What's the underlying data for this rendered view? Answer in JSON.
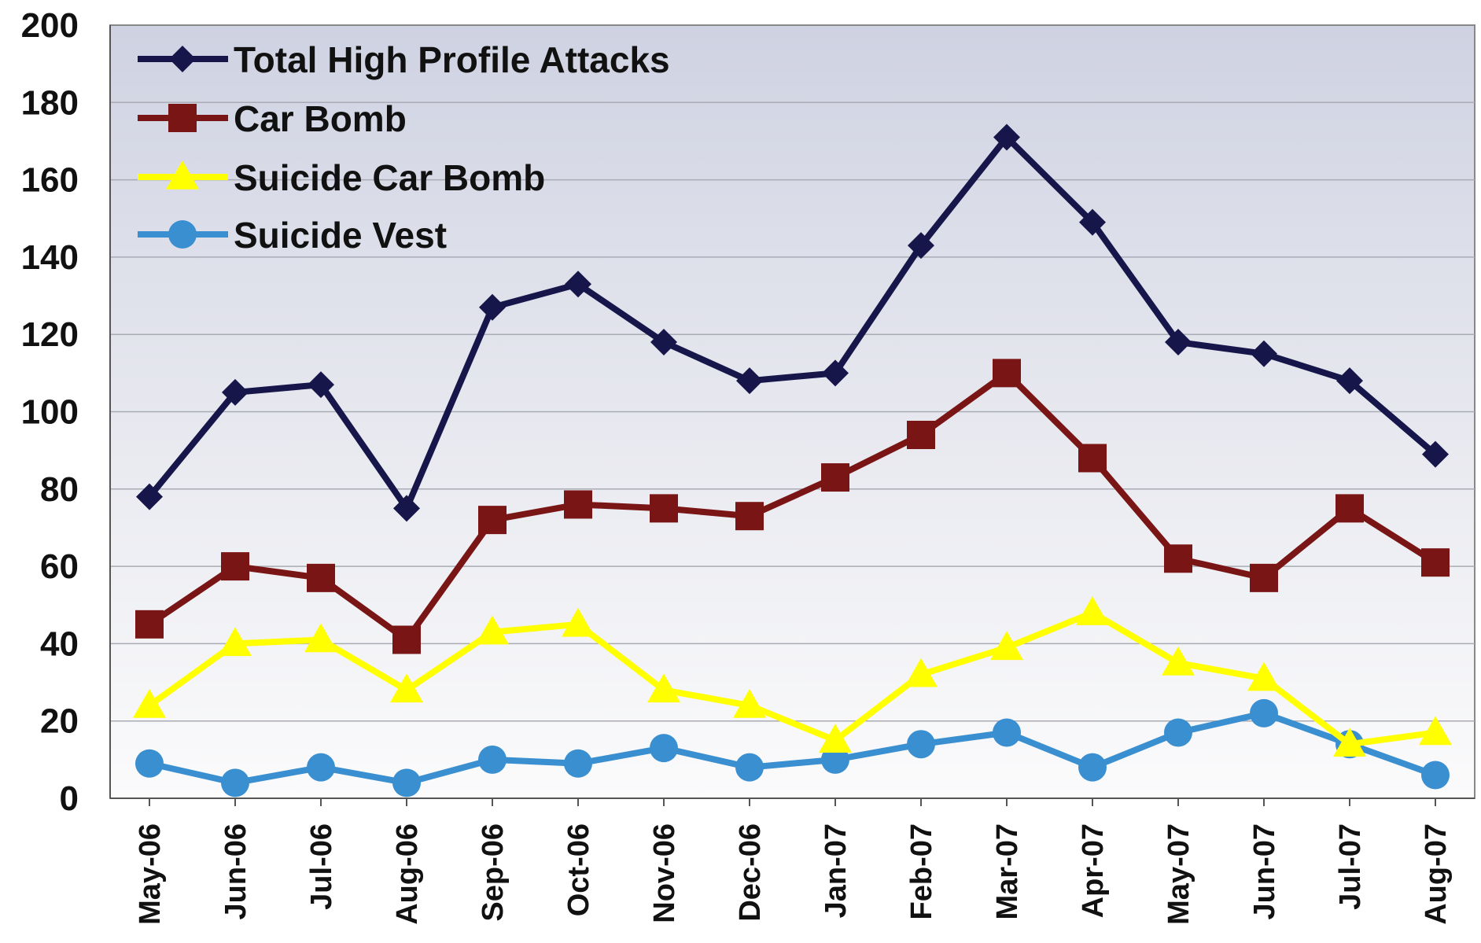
{
  "chart_data": {
    "type": "line",
    "title": "",
    "xlabel": "",
    "ylabel": "",
    "ylim": [
      0,
      200
    ],
    "yticks": [
      0,
      20,
      40,
      60,
      80,
      100,
      120,
      140,
      160,
      180,
      200
    ],
    "grid": true,
    "legend_position": "top-left",
    "categories": [
      "May-06",
      "Jun-06",
      "Jul-06",
      "Aug-06",
      "Sep-06",
      "Oct-06",
      "Nov-06",
      "Dec-06",
      "Jan-07",
      "Feb-07",
      "Mar-07",
      "Apr-07",
      "May-07",
      "Jun-07",
      "Jul-07",
      "Aug-07"
    ],
    "series": [
      {
        "name": "Total High Profile Attacks",
        "color": "#16164a",
        "marker": "diamond",
        "values": [
          78,
          105,
          107,
          75,
          127,
          133,
          118,
          108,
          110,
          143,
          171,
          149,
          118,
          115,
          108,
          89
        ]
      },
      {
        "name": "Car Bomb",
        "color": "#7a1515",
        "marker": "square",
        "values": [
          45,
          60,
          57,
          41,
          72,
          76,
          75,
          73,
          83,
          94,
          110,
          88,
          62,
          57,
          75,
          61
        ]
      },
      {
        "name": "Suicide Car Bomb",
        "color": "#ffff00",
        "marker": "triangle",
        "values": [
          24,
          40,
          41,
          28,
          43,
          45,
          28,
          24,
          15,
          32,
          39,
          48,
          35,
          31,
          14,
          17
        ]
      },
      {
        "name": "Suicide Vest",
        "color": "#3a8fd0",
        "marker": "circle",
        "values": [
          9,
          4,
          8,
          4,
          10,
          9,
          13,
          8,
          10,
          14,
          17,
          8,
          17,
          22,
          14,
          6
        ]
      }
    ]
  }
}
